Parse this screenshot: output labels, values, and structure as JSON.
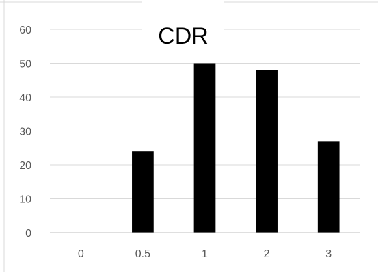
{
  "chart_data": {
    "type": "bar",
    "title": "CDR",
    "categories": [
      "0",
      "0.5",
      "1",
      "2",
      "3"
    ],
    "values": [
      0,
      24,
      50,
      48,
      27
    ],
    "xlabel": "",
    "ylabel": "",
    "ylim": [
      0,
      60
    ],
    "yticks": [
      0,
      10,
      20,
      30,
      40,
      50,
      60
    ],
    "grid": true,
    "legend": "none",
    "bar_color": "#000000",
    "grid_color": "#d9d9d9",
    "axis_color": "#bfbfbf",
    "tick_label_color": "#595959"
  }
}
